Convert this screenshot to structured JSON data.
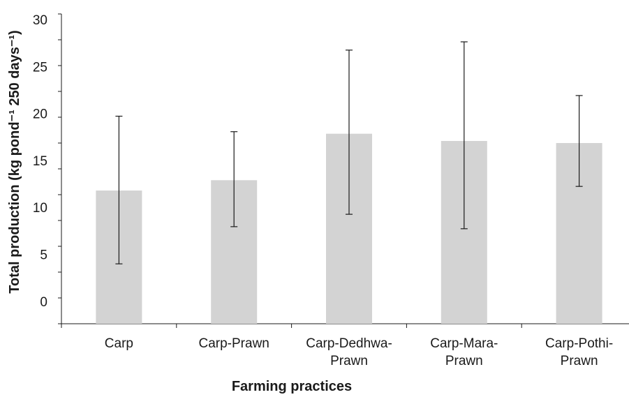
{
  "chart_data": {
    "type": "bar",
    "categories": [
      [
        "Carp"
      ],
      [
        "Carp-Prawn"
      ],
      [
        "Carp-Dedhwa-",
        "Prawn"
      ],
      [
        "Carp-Mara-",
        "Prawn"
      ],
      [
        "Carp-Pothi-",
        "Prawn"
      ]
    ],
    "values": [
      12.9,
      13.9,
      18.4,
      17.7,
      17.5
    ],
    "error_low": [
      5.8,
      9.4,
      10.6,
      9.2,
      13.3
    ],
    "error_high": [
      20.1,
      18.6,
      26.5,
      27.3,
      22.1
    ],
    "xlabel": "Farming practices",
    "ylabel": "Total production (kg pond⁻¹ 250 days⁻¹)",
    "ylim": [
      0,
      30
    ],
    "y_ticks": [
      "30",
      "25",
      "20",
      "15",
      "10",
      "5",
      "0"
    ],
    "grid": false,
    "bar_color": "#d3d3d3",
    "error_bar_color": "#1a1a1a"
  }
}
